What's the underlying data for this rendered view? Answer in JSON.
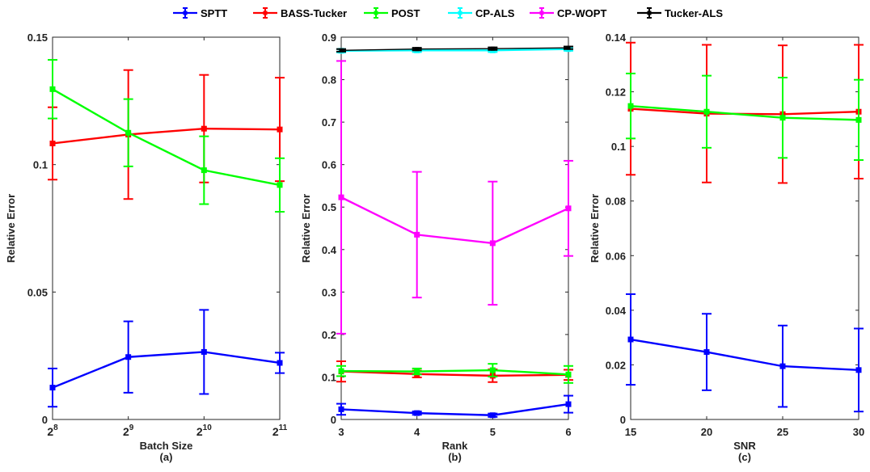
{
  "legend": [
    {
      "name": "SPTT",
      "color": "#0000ff"
    },
    {
      "name": "BASS-Tucker",
      "color": "#ff0000"
    },
    {
      "name": "POST",
      "color": "#00ff00"
    },
    {
      "name": "CP-ALS",
      "color": "#00ffff"
    },
    {
      "name": "CP-WOPT",
      "color": "#ff00ff"
    },
    {
      "name": "Tucker-ALS",
      "color": "#000000"
    }
  ],
  "chart_data": [
    {
      "type": "line",
      "panel_label": "(a)",
      "xlabel": "Batch Size",
      "ylabel": "Relative Error",
      "x": [
        8,
        9,
        10,
        11
      ],
      "xticklabels": [
        {
          "base": "2",
          "exp": "8"
        },
        {
          "base": "2",
          "exp": "9"
        },
        {
          "base": "2",
          "exp": "10"
        },
        {
          "base": "2",
          "exp": "11"
        }
      ],
      "xlim": [
        8,
        11
      ],
      "ylim": [
        0,
        0.15
      ],
      "yticks": [
        0,
        0.05,
        0.1,
        0.15
      ],
      "yticklabels": [
        "0",
        "0.05",
        "0.1",
        "0.15"
      ],
      "series": [
        {
          "name": "SPTT",
          "color": "#0000ff",
          "values": [
            0.0125,
            0.0245,
            0.0265,
            0.0222
          ],
          "err": [
            0.0075,
            0.014,
            0.0165,
            0.004
          ]
        },
        {
          "name": "BASS-Tucker",
          "color": "#ff0000",
          "values": [
            0.1083,
            0.1118,
            0.1141,
            0.1138
          ],
          "err": [
            0.0142,
            0.0253,
            0.0211,
            0.0203
          ]
        },
        {
          "name": "POST",
          "color": "#00ff00",
          "values": [
            0.1296,
            0.1125,
            0.0978,
            0.092
          ],
          "err": [
            0.0115,
            0.0132,
            0.0133,
            0.0105
          ]
        }
      ]
    },
    {
      "type": "line",
      "panel_label": "(b)",
      "xlabel": "Rank",
      "ylabel": "Relative Error",
      "x": [
        3,
        4,
        5,
        6
      ],
      "xticklabels": [
        "3",
        "4",
        "5",
        "6"
      ],
      "xlim": [
        3,
        6
      ],
      "ylim": [
        0,
        0.9
      ],
      "yticks": [
        0,
        0.1,
        0.2,
        0.3,
        0.4,
        0.5,
        0.6,
        0.7,
        0.8,
        0.9
      ],
      "yticklabels": [
        "0",
        "0.1",
        "0.2",
        "0.3",
        "0.4",
        "0.5",
        "0.6",
        "0.7",
        "0.8",
        "0.9"
      ],
      "series": [
        {
          "name": "SPTT",
          "color": "#0000ff",
          "values": [
            0.024,
            0.015,
            0.01,
            0.036
          ],
          "err": [
            0.013,
            0.004,
            0.004,
            0.02
          ]
        },
        {
          "name": "BASS-Tucker",
          "color": "#ff0000",
          "values": [
            0.113,
            0.107,
            0.103,
            0.105
          ],
          "err": [
            0.024,
            0.008,
            0.015,
            0.012
          ]
        },
        {
          "name": "POST",
          "color": "#00ff00",
          "values": [
            0.114,
            0.113,
            0.116,
            0.106
          ],
          "err": [
            0.012,
            0.007,
            0.015,
            0.02
          ]
        },
        {
          "name": "CP-ALS",
          "color": "#00ffff",
          "values": [
            0.868,
            0.869,
            0.869,
            0.872
          ],
          "err": [
            0.004,
            0.004,
            0.004,
            0.004
          ]
        },
        {
          "name": "CP-WOPT",
          "color": "#ff00ff",
          "values": [
            0.523,
            0.435,
            0.415,
            0.497
          ],
          "err": [
            0.321,
            0.148,
            0.145,
            0.112
          ]
        },
        {
          "name": "Tucker-ALS",
          "color": "#000000",
          "values": [
            0.869,
            0.872,
            0.873,
            0.875
          ],
          "err": [
            0.003,
            0.003,
            0.003,
            0.003
          ]
        }
      ]
    },
    {
      "type": "line",
      "panel_label": "(c)",
      "xlabel": "SNR",
      "ylabel": "Relative Error",
      "x": [
        15,
        20,
        25,
        30
      ],
      "xticklabels": [
        "15",
        "20",
        "25",
        "30"
      ],
      "xlim": [
        15,
        30
      ],
      "ylim": [
        0,
        0.14
      ],
      "yticks": [
        0,
        0.02,
        0.04,
        0.06,
        0.08,
        0.1,
        0.12,
        0.14
      ],
      "yticklabels": [
        "0",
        "0.02",
        "0.04",
        "0.06",
        "0.08",
        "0.1",
        "0.12",
        "0.14"
      ],
      "series": [
        {
          "name": "SPTT",
          "color": "#0000ff",
          "values": [
            0.0293,
            0.0247,
            0.0195,
            0.0181
          ],
          "err": [
            0.0166,
            0.014,
            0.0149,
            0.0152
          ]
        },
        {
          "name": "BASS-Tucker",
          "color": "#ff0000",
          "values": [
            0.1138,
            0.112,
            0.1118,
            0.1127
          ],
          "err": [
            0.0242,
            0.0252,
            0.0252,
            0.0245
          ]
        },
        {
          "name": "POST",
          "color": "#00ff00",
          "values": [
            0.1148,
            0.1127,
            0.1105,
            0.1097
          ],
          "err": [
            0.0119,
            0.0132,
            0.0147,
            0.0147
          ]
        }
      ]
    }
  ]
}
